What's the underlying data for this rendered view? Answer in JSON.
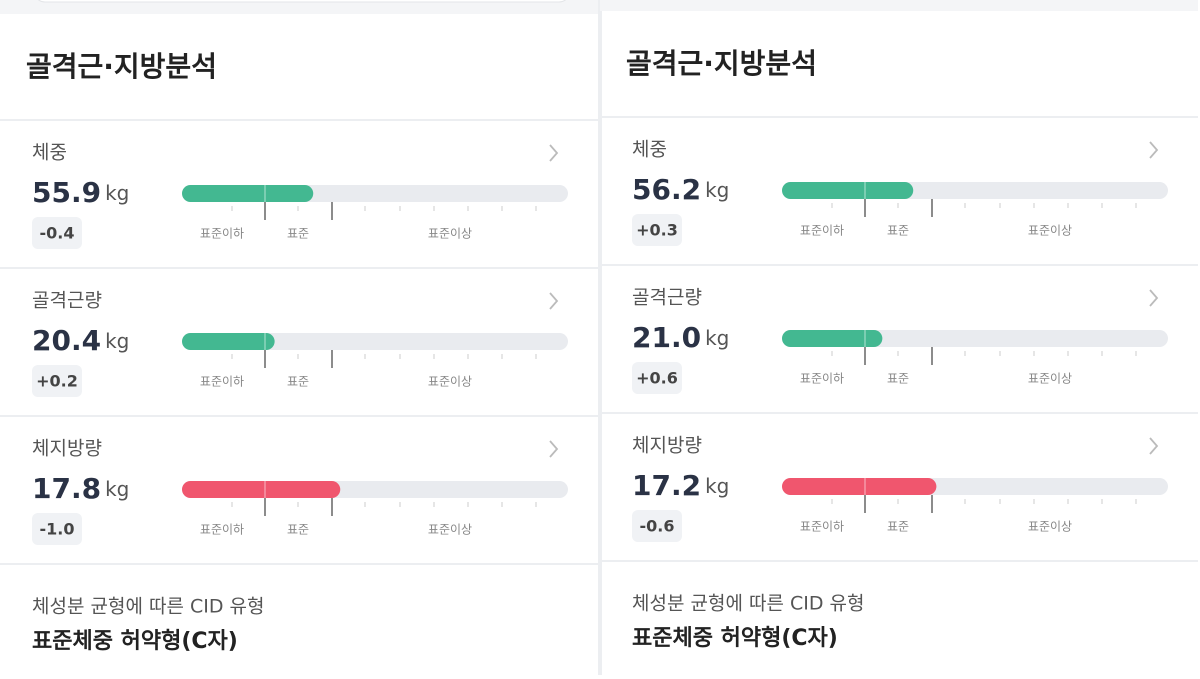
{
  "panels": [
    {
      "title": "골격근·지방분석",
      "scale_labels": [
        "표준이하",
        "표준",
        "표준이상"
      ],
      "metrics": [
        {
          "label": "체중",
          "value": "55.9",
          "unit": "kg",
          "delta": "-0.4",
          "level": 34,
          "color": "#43b891"
        },
        {
          "label": "골격근량",
          "value": "20.4",
          "unit": "kg",
          "delta": "+0.2",
          "level": 24,
          "color": "#43b891"
        },
        {
          "label": "체지방량",
          "value": "17.8",
          "unit": "kg",
          "delta": "-1.0",
          "level": 41,
          "color": "#f0566e"
        }
      ],
      "cid_label": "체성분 균형에 따른 CID 유형",
      "cid_value": "표준체중 허약형(C자)"
    },
    {
      "title": "골격근·지방분석",
      "scale_labels": [
        "표준이하",
        "표준",
        "표준이상"
      ],
      "metrics": [
        {
          "label": "체중",
          "value": "56.2",
          "unit": "kg",
          "delta": "+0.3",
          "level": 34,
          "color": "#43b891"
        },
        {
          "label": "골격근량",
          "value": "21.0",
          "unit": "kg",
          "delta": "+0.6",
          "level": 26,
          "color": "#43b891"
        },
        {
          "label": "체지방량",
          "value": "17.2",
          "unit": "kg",
          "delta": "-0.6",
          "level": 40,
          "color": "#f0566e"
        }
      ],
      "cid_label": "체성분 균형에 따른 CID 유형",
      "cid_value": "표준체중 허약형(C자)"
    }
  ]
}
